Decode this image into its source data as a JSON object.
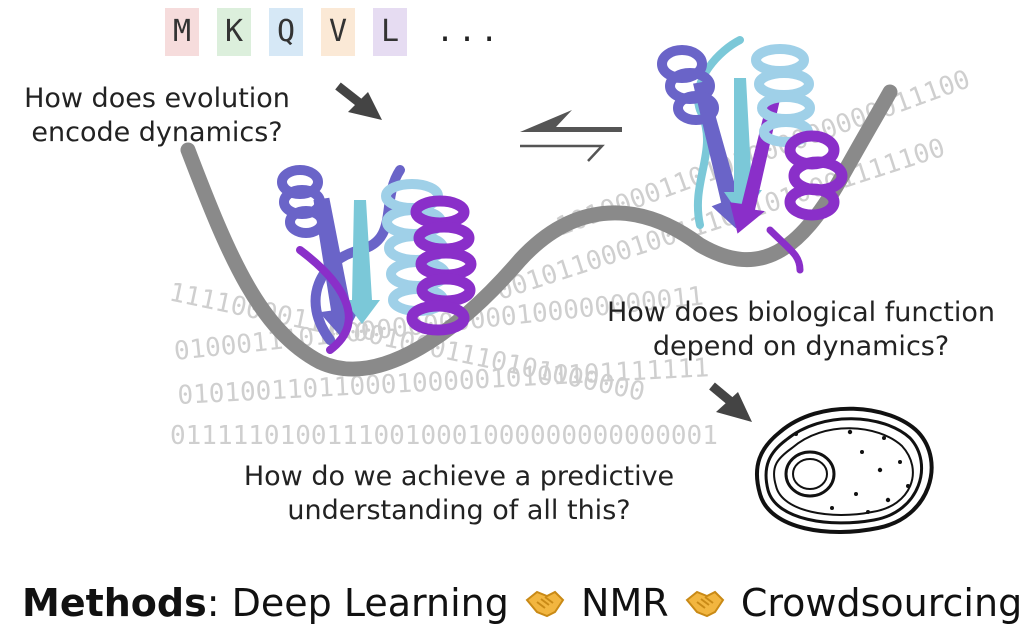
{
  "sequence": {
    "residues": [
      {
        "letter": "M",
        "color": "#f6dcdc"
      },
      {
        "letter": "K",
        "color": "#dcefdc"
      },
      {
        "letter": "Q",
        "color": "#d6e8f6"
      },
      {
        "letter": "V",
        "color": "#fbe9d6"
      },
      {
        "letter": "L",
        "color": "#e6dcf2"
      }
    ],
    "ellipsis": "..."
  },
  "questions": {
    "evolution_line1": "How does evolution",
    "evolution_line2": "encode dynamics?",
    "function_line1": "How does biological function",
    "function_line2": "depend on dynamics?",
    "predictive_line1": "How do we achieve a predictive",
    "predictive_line2": "understanding of all this?"
  },
  "binary_rows": [
    "01111101001110010001000000000000001",
    "0101001101100010000010101101111111",
    "0100011101000000000000100000000011",
    "1111000011110010001110101000000",
    "001011000100111001010001111100",
    "1010000110101000000000011100"
  ],
  "methods": {
    "label": "Methods",
    "separator": ":",
    "items": [
      "Deep Learning",
      "NMR",
      "Crowdsourcing"
    ],
    "icon": "handshake-icon"
  },
  "colors": {
    "landscape": "#8a8a8a",
    "binary": "#cfcfcf",
    "arrow": "#444444",
    "helix_purple": "#8a2fc9",
    "sheet_blue": "#6a64c8",
    "helix_light": "#9fd0e8",
    "handshake": "#f2b640"
  }
}
